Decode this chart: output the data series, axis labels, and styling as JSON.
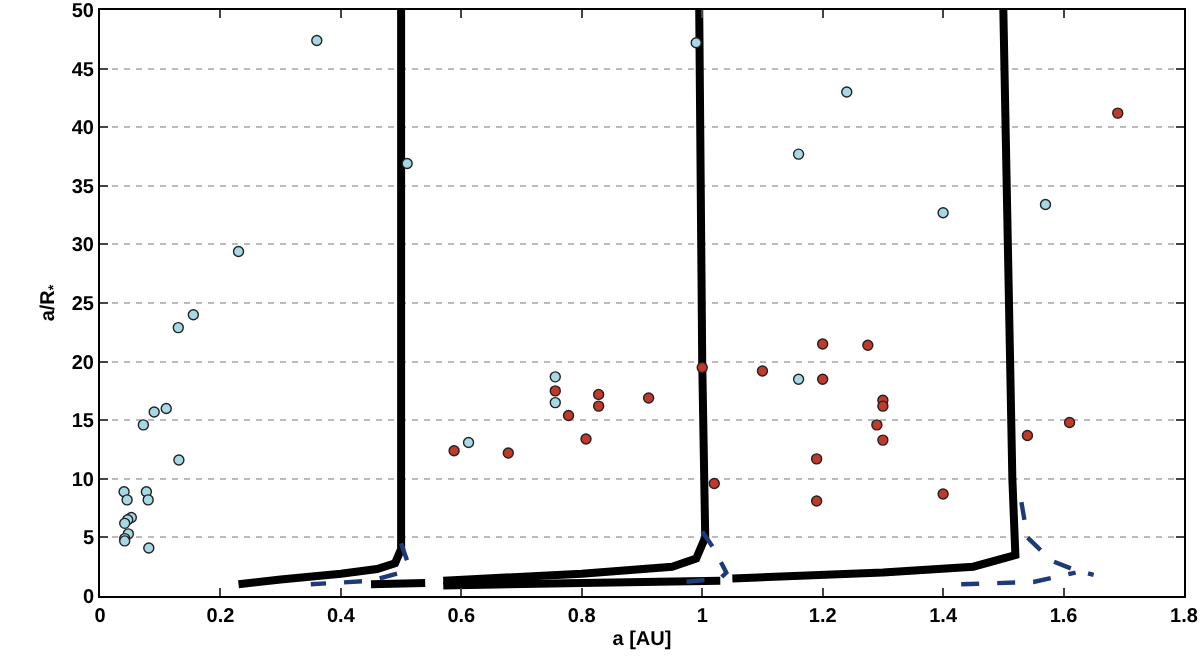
{
  "chart_data": {
    "type": "scatter",
    "xlabel": "a [AU]",
    "ylabel": "a/R$_{*}$",
    "xlim": [
      0,
      1.8
    ],
    "ylim": [
      0,
      50
    ],
    "xticks": [
      0,
      0.2,
      0.4,
      0.6,
      0.8,
      1,
      1.2,
      1.4,
      1.6,
      1.8
    ],
    "yticks": [
      0,
      5,
      10,
      15,
      20,
      25,
      30,
      35,
      40,
      45,
      50
    ],
    "grid": "y",
    "series": [
      {
        "type": "line",
        "color": "#000000",
        "line_style": "solid",
        "marker": "none",
        "x": [
          0.23,
          0.3,
          0.4,
          0.46,
          0.49,
          0.5,
          0.5,
          0.5
        ],
        "values": [
          1.0,
          1.4,
          1.9,
          2.3,
          2.8,
          4,
          10,
          50
        ]
      },
      {
        "type": "line",
        "color": "#000000",
        "line_style": "solid",
        "marker": "none",
        "x": [
          0.45,
          0.54
        ],
        "values": [
          1.0,
          1.1
        ]
      },
      {
        "type": "line",
        "color": "#000000",
        "line_style": "solid",
        "marker": "none",
        "x": [
          0.57,
          0.8,
          0.95,
          0.99,
          1.005,
          1.0,
          0.995
        ],
        "values": [
          1.3,
          1.9,
          2.5,
          3.2,
          5,
          20,
          50
        ]
      },
      {
        "type": "line",
        "color": "#000000",
        "line_style": "solid",
        "marker": "none",
        "x": [
          0.57,
          0.8,
          1.03
        ],
        "values": [
          0.9,
          1.1,
          1.3
        ]
      },
      {
        "type": "line",
        "color": "#000000",
        "line_style": "solid",
        "marker": "none",
        "x": [
          1.05,
          1.3,
          1.45,
          1.52,
          1.515,
          1.5
        ],
        "values": [
          1.5,
          2.0,
          2.5,
          3.5,
          10,
          50
        ]
      },
      {
        "type": "line",
        "color": "#1f3a7a",
        "line_style": "dashed",
        "marker": "none",
        "x": [
          0.5,
          0.51,
          0.5,
          0.45,
          0.35
        ],
        "values": [
          4.5,
          3.0,
          2.0,
          1.3,
          1.0
        ]
      },
      {
        "type": "line",
        "color": "#1f3a7a",
        "line_style": "dashed",
        "marker": "none",
        "x": [
          1.0,
          1.02,
          1.04,
          1.03,
          0.97
        ],
        "values": [
          5.5,
          4,
          2,
          1.5,
          1.2
        ]
      },
      {
        "type": "line",
        "color": "#1f3a7a",
        "line_style": "dashed",
        "marker": "none",
        "x": [
          1.53,
          1.54,
          1.58,
          1.62,
          1.65
        ],
        "values": [
          8,
          5,
          3.0,
          2.2,
          1.8
        ]
      },
      {
        "type": "line",
        "color": "#1f3a7a",
        "line_style": "dashed",
        "marker": "none",
        "x": [
          1.43,
          1.55,
          1.62
        ],
        "values": [
          1.0,
          1.2,
          2.0
        ]
      },
      {
        "color": "#a6d8e6",
        "marker": "circle",
        "x": [
          0.99,
          1.24,
          1.16,
          1.4,
          1.57,
          0.36,
          0.51,
          0.23,
          0.155,
          0.13,
          0.072,
          0.09,
          0.11,
          0.131,
          0.04,
          0.045,
          0.077,
          0.08,
          0.052,
          0.046,
          0.041,
          0.047,
          0.041,
          0.041,
          0.081,
          0.612,
          0.756,
          0.756,
          1.16
        ],
        "values": [
          47.2,
          43,
          37.7,
          32.7,
          33.4,
          47.4,
          36.9,
          29.4,
          24.0,
          22.9,
          14.6,
          15.7,
          16.0,
          11.6,
          8.9,
          8.2,
          8.9,
          8.2,
          6.7,
          6.5,
          6.2,
          5.3,
          4.9,
          4.7,
          4.1,
          13.1,
          18.7,
          16.5,
          18.5
        ]
      },
      {
        "color": "#c0392b",
        "marker": "circle",
        "x": [
          1.69,
          0.588,
          0.678,
          0.756,
          0.778,
          0.807,
          0.828,
          0.828,
          0.911,
          1.0,
          1.02,
          1.1,
          1.2,
          1.275,
          1.2,
          1.3,
          1.3,
          1.29,
          1.3,
          1.19,
          1.19,
          1.4,
          1.54,
          1.61
        ],
        "values": [
          41.2,
          12.4,
          12.2,
          17.5,
          15.4,
          13.4,
          17.2,
          16.2,
          16.9,
          19.5,
          9.6,
          19.2,
          21.5,
          21.4,
          18.5,
          16.7,
          16.2,
          14.6,
          13.3,
          11.7,
          8.1,
          8.7,
          13.7,
          14.8
        ]
      }
    ]
  }
}
